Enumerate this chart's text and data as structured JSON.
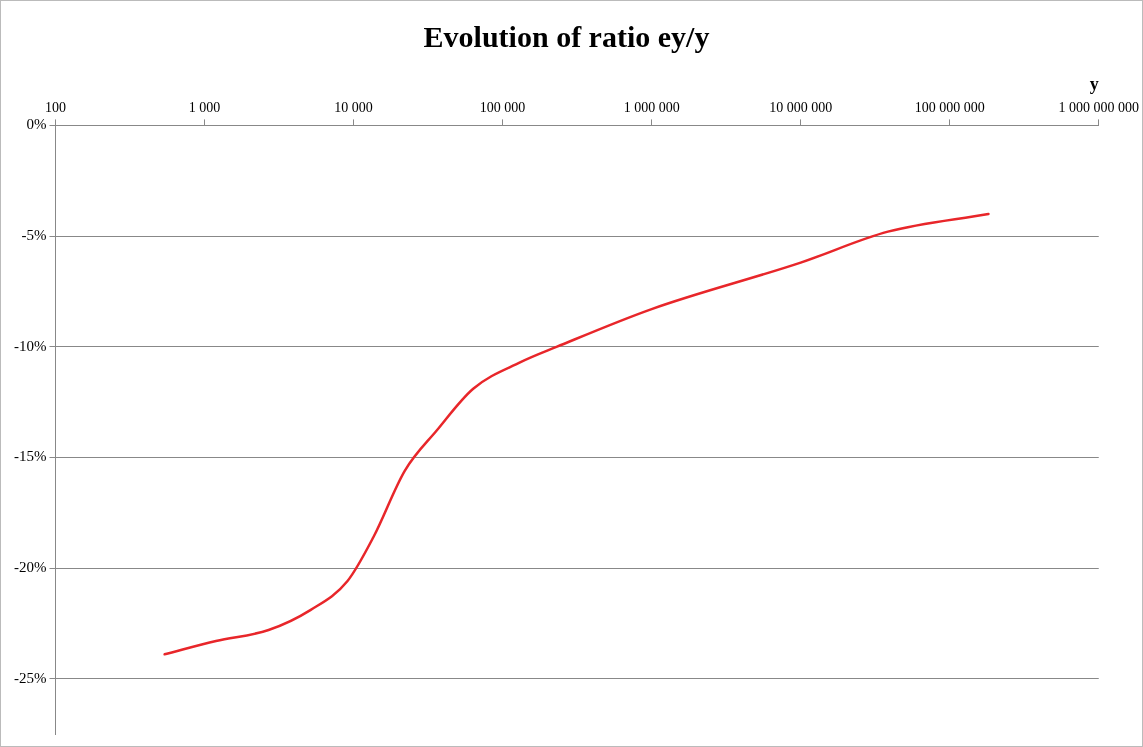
{
  "chart_data": {
    "type": "line",
    "title": "Evolution of ratio ey/y",
    "xlabel": "y",
    "x": [
      540,
      1194,
      2690,
      5130,
      9080,
      13600,
      22100,
      36000,
      63500,
      132000,
      232000,
      1000000,
      10000000,
      38500000,
      182000000
    ],
    "series": [
      {
        "color": "#e8262a",
        "values": [
          -23.9,
          -23.3,
          -22.8,
          -21.9,
          -20.6,
          -18.6,
          -15.6,
          -13.8,
          -11.9,
          -10.7,
          -10.0,
          -8.3,
          -6.2,
          -4.8,
          -4.0
        ]
      }
    ],
    "log": "x",
    "xlim": [
      100,
      1000000000
    ],
    "xticks": [
      100,
      {
        "value": 1000,
        "label": "1 000"
      },
      {
        "value": 10000,
        "label": "10 000"
      },
      {
        "value": 100000,
        "label": "100 000"
      },
      {
        "value": 1000000,
        "label": "1 000 000"
      },
      {
        "value": 10000000,
        "label": "10 000 000"
      },
      {
        "value": 100000000,
        "label": "100 000 000"
      },
      {
        "value": 1000000000,
        "label": "1 000 000 000"
      }
    ],
    "ylim": [
      -27.5,
      0
    ],
    "yticks": [
      {
        "value": 0,
        "label": "0%"
      },
      {
        "value": -5,
        "label": "-5%"
      },
      {
        "value": -10,
        "label": "-10%"
      },
      {
        "value": -15,
        "label": "-15%"
      },
      {
        "value": -20,
        "label": "-20%"
      },
      {
        "value": -25,
        "label": "-25%"
      }
    ],
    "grid": "y",
    "legend": false,
    "marker": "none",
    "line_style": "solid"
  }
}
